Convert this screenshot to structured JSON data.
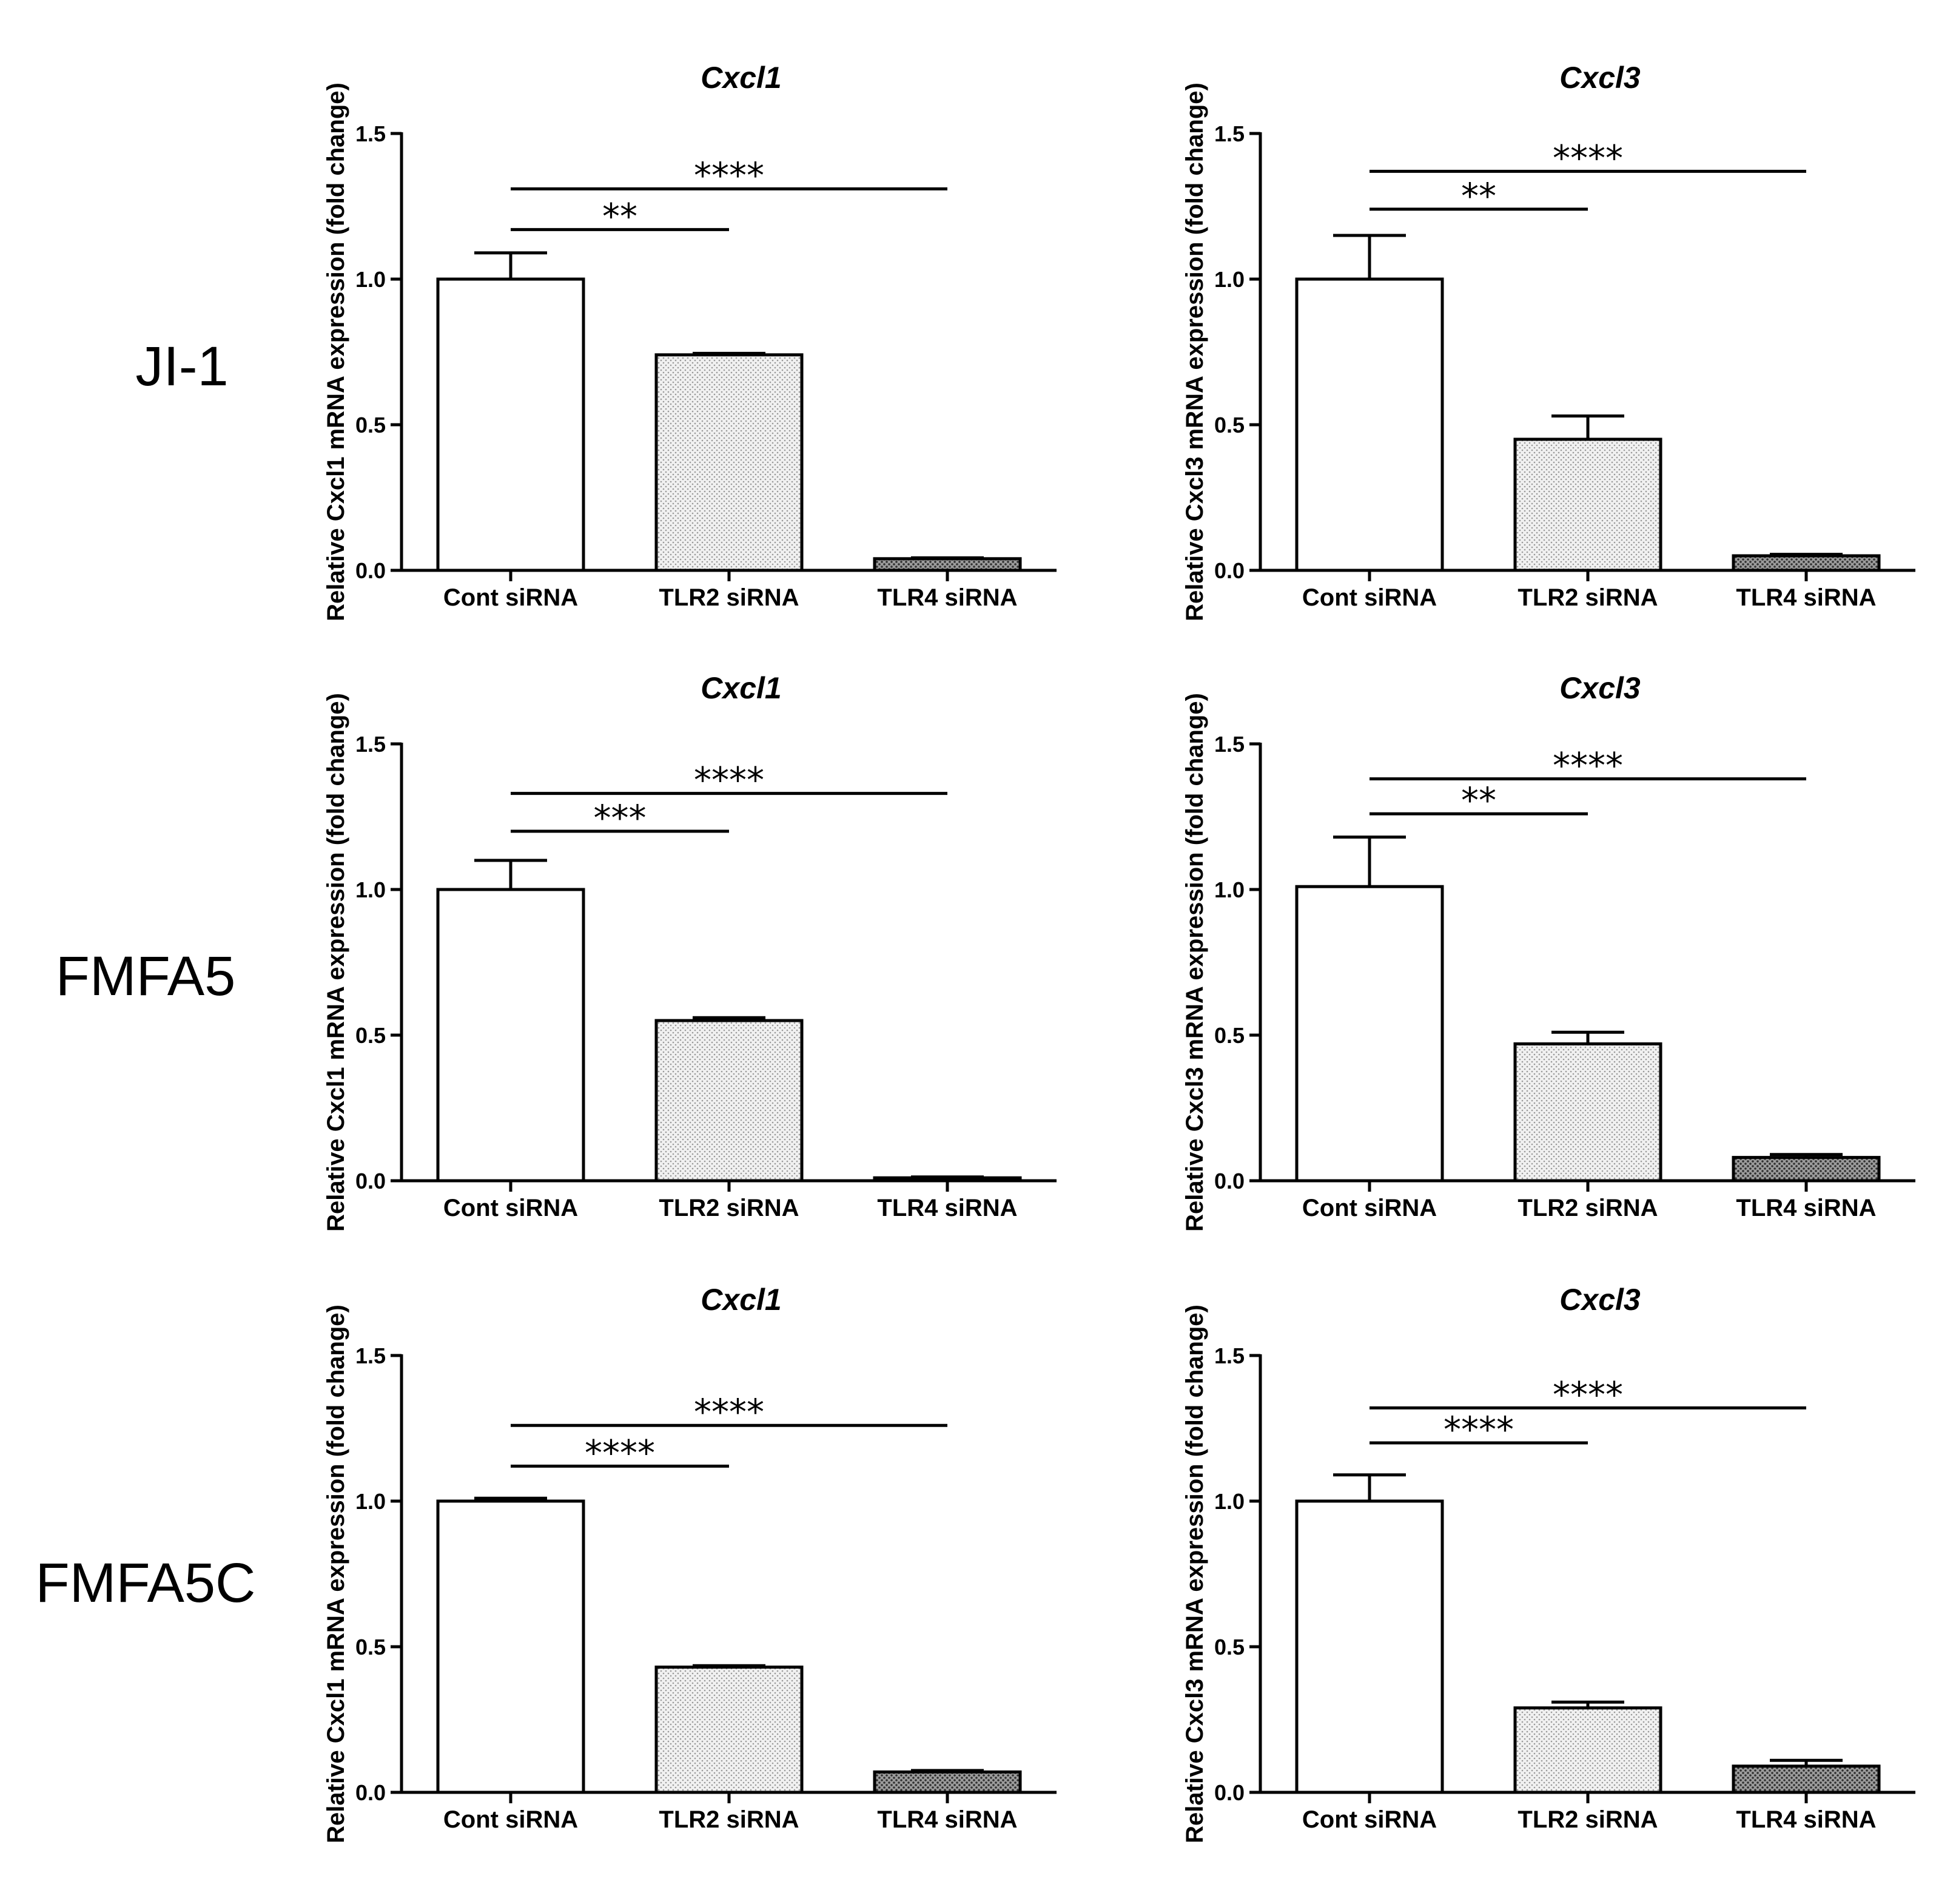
{
  "figure": {
    "row_labels": [
      "JI-1",
      "FMFA5",
      "FMFA5C"
    ]
  },
  "chart_data": [
    {
      "type": "bar",
      "row": "JI-1",
      "title": "Cxcl1",
      "ylabel": "Relative Cxcl1 mRNA expression (fold change)",
      "categories": [
        "Cont siRNA",
        "TLR2 siRNA",
        "TLR4 siRNA"
      ],
      "values": [
        1.0,
        0.74,
        0.04
      ],
      "errors": [
        0.09,
        0.005,
        0.003
      ],
      "ylim": [
        0,
        1.5
      ],
      "yticks": [
        "0.0",
        "0.5",
        "1.0",
        "1.5"
      ],
      "significance": [
        {
          "from": 0,
          "to": 1,
          "level": 1.17,
          "label": "**"
        },
        {
          "from": 0,
          "to": 2,
          "level": 1.31,
          "label": "****"
        }
      ]
    },
    {
      "type": "bar",
      "row": "JI-1",
      "title": "Cxcl3",
      "ylabel": "Relative Cxcl3 mRNA expression (fold change)",
      "categories": [
        "Cont siRNA",
        "TLR2 siRNA",
        "TLR4 siRNA"
      ],
      "values": [
        1.0,
        0.45,
        0.05
      ],
      "errors": [
        0.15,
        0.08,
        0.005
      ],
      "ylim": [
        0,
        1.5
      ],
      "yticks": [
        "0.0",
        "0.5",
        "1.0",
        "1.5"
      ],
      "significance": [
        {
          "from": 0,
          "to": 1,
          "level": 1.24,
          "label": "**"
        },
        {
          "from": 0,
          "to": 2,
          "level": 1.37,
          "label": "****"
        }
      ]
    },
    {
      "type": "bar",
      "row": "FMFA5",
      "title": "Cxcl1",
      "ylabel": "Relative Cxcl1 mRNA expression (fold change)",
      "categories": [
        "Cont siRNA",
        "TLR2 siRNA",
        "TLR4 siRNA"
      ],
      "values": [
        1.0,
        0.55,
        0.01
      ],
      "errors": [
        0.1,
        0.01,
        0.003
      ],
      "ylim": [
        0,
        1.5
      ],
      "yticks": [
        "0.0",
        "0.5",
        "1.0",
        "1.5"
      ],
      "significance": [
        {
          "from": 0,
          "to": 1,
          "level": 1.2,
          "label": "***"
        },
        {
          "from": 0,
          "to": 2,
          "level": 1.33,
          "label": "****"
        }
      ]
    },
    {
      "type": "bar",
      "row": "FMFA5",
      "title": "Cxcl3",
      "ylabel": "Relative Cxcl3 mRNA expression (fold change)",
      "categories": [
        "Cont siRNA",
        "TLR2 siRNA",
        "TLR4 siRNA"
      ],
      "values": [
        1.01,
        0.47,
        0.08
      ],
      "errors": [
        0.17,
        0.04,
        0.01
      ],
      "ylim": [
        0,
        1.5
      ],
      "yticks": [
        "0.0",
        "0.5",
        "1.0",
        "1.5"
      ],
      "significance": [
        {
          "from": 0,
          "to": 1,
          "level": 1.26,
          "label": "**"
        },
        {
          "from": 0,
          "to": 2,
          "level": 1.38,
          "label": "****"
        }
      ]
    },
    {
      "type": "bar",
      "row": "FMFA5C",
      "title": "Cxcl1",
      "ylabel": "Relative Cxcl1 mRNA expression (fold change)",
      "categories": [
        "Cont siRNA",
        "TLR2 siRNA",
        "TLR4 siRNA"
      ],
      "values": [
        1.0,
        0.43,
        0.07
      ],
      "errors": [
        0.01,
        0.005,
        0.005
      ],
      "ylim": [
        0,
        1.5
      ],
      "yticks": [
        "0.0",
        "0.5",
        "1.0",
        "1.5"
      ],
      "significance": [
        {
          "from": 0,
          "to": 1,
          "level": 1.12,
          "label": "****"
        },
        {
          "from": 0,
          "to": 2,
          "level": 1.26,
          "label": "****"
        }
      ]
    },
    {
      "type": "bar",
      "row": "FMFA5C",
      "title": "Cxcl3",
      "ylabel": "Relative Cxcl3 mRNA expression (fold change)",
      "categories": [
        "Cont siRNA",
        "TLR2 siRNA",
        "TLR4 siRNA"
      ],
      "values": [
        1.0,
        0.29,
        0.09
      ],
      "errors": [
        0.09,
        0.02,
        0.02
      ],
      "ylim": [
        0,
        1.5
      ],
      "yticks": [
        "0.0",
        "0.5",
        "1.0",
        "1.5"
      ],
      "significance": [
        {
          "from": 0,
          "to": 1,
          "level": 1.2,
          "label": "****"
        },
        {
          "from": 0,
          "to": 2,
          "level": 1.32,
          "label": "****"
        }
      ]
    }
  ]
}
